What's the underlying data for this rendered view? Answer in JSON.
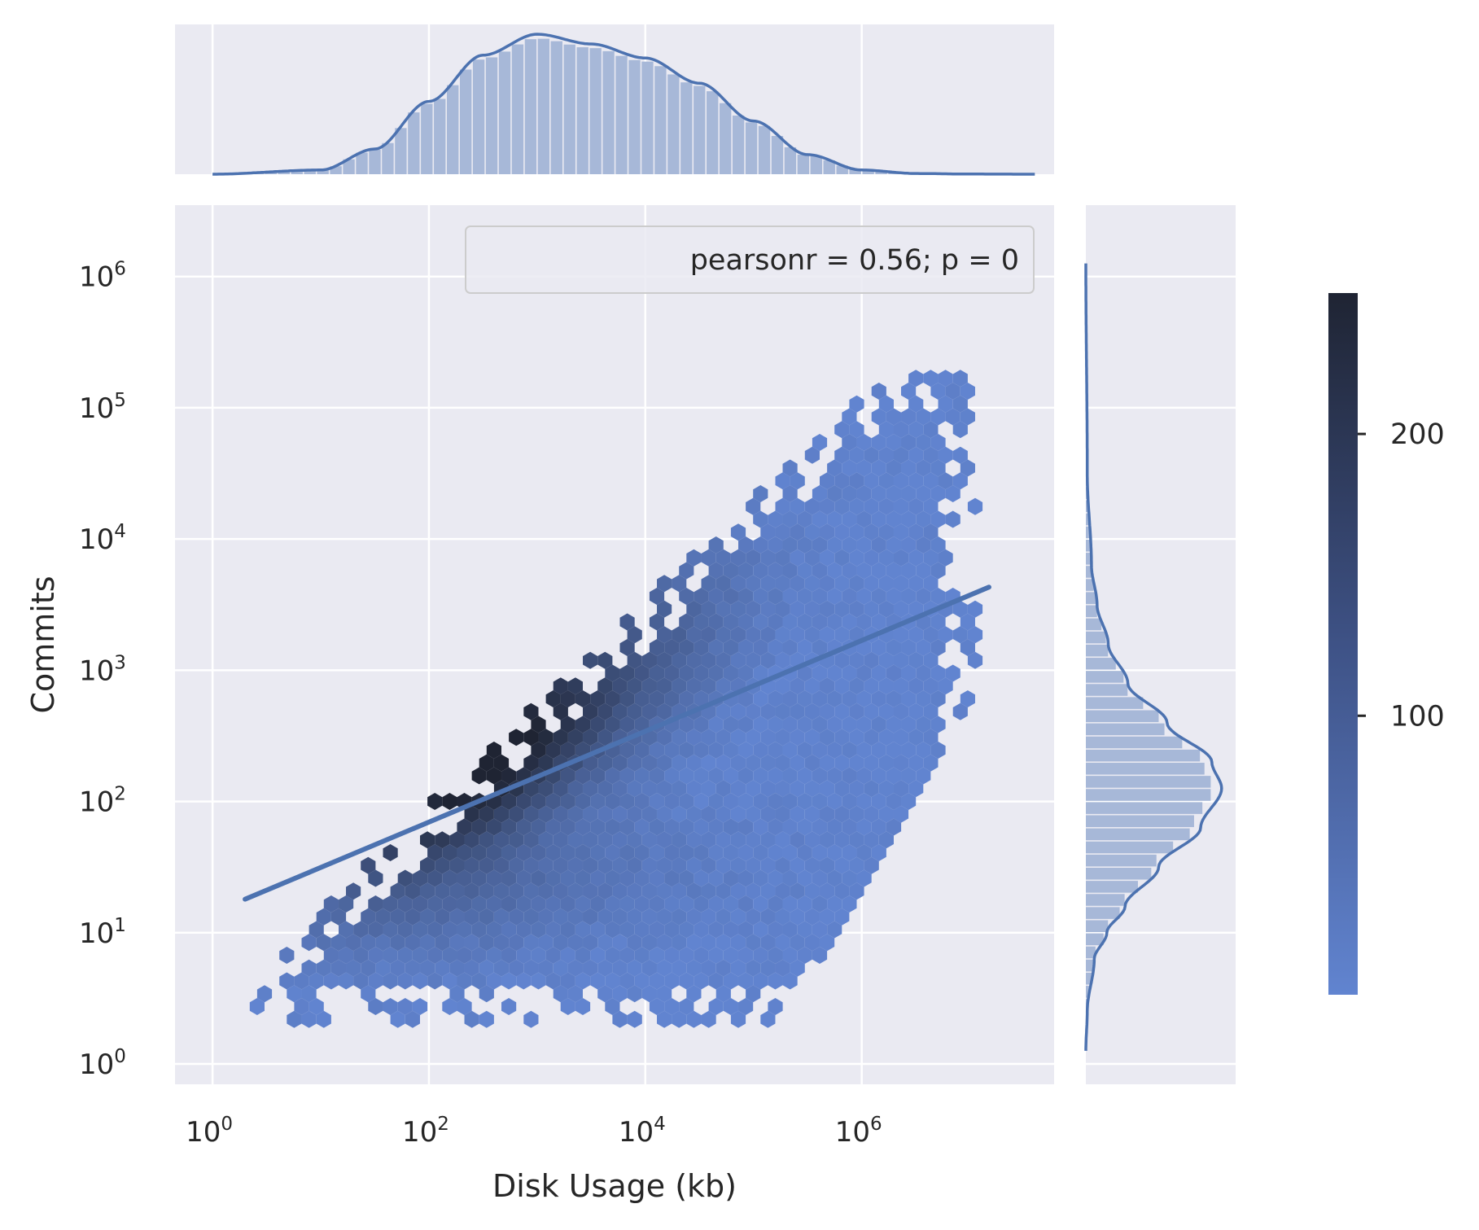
{
  "chart_data": {
    "type": "hexbin",
    "xlabel": "Disk Usage (kb)",
    "ylabel": "Commits",
    "x_scale": "log",
    "y_scale": "log",
    "xlim": [
      0.45,
      60000000
    ],
    "ylim": [
      0.7,
      3500000
    ],
    "x_ticks": [
      {
        "value": 1,
        "base": "10",
        "exp": "0"
      },
      {
        "value": 100,
        "base": "10",
        "exp": "2"
      },
      {
        "value": 10000,
        "base": "10",
        "exp": "4"
      },
      {
        "value": 1000000,
        "base": "10",
        "exp": "6"
      }
    ],
    "y_ticks": [
      {
        "value": 1,
        "base": "10",
        "exp": "0"
      },
      {
        "value": 10,
        "base": "10",
        "exp": "1"
      },
      {
        "value": 100,
        "base": "10",
        "exp": "2"
      },
      {
        "value": 1000,
        "base": "10",
        "exp": "3"
      },
      {
        "value": 10000,
        "base": "10",
        "exp": "4"
      },
      {
        "value": 100000,
        "base": "10",
        "exp": "5"
      },
      {
        "value": 1000000,
        "base": "10",
        "exp": "6"
      }
    ],
    "grid": true,
    "legend": {
      "text": "pearsonr = 0.56; p = 0",
      "placement": "upper right"
    },
    "regression_line": {
      "x": [
        2,
        15000000
      ],
      "y": [
        18,
        4300
      ]
    },
    "density_peak": {
      "x": 200,
      "y": 150
    },
    "colorbar": {
      "ticks": [
        100,
        200
      ],
      "labels": [
        "100",
        "200"
      ],
      "min": 1,
      "max": 250
    },
    "marginal_x": {
      "peak_x": 1000,
      "kde_log10x": [
        0,
        1.0,
        1.5,
        2.0,
        2.5,
        3.0,
        3.5,
        4.0,
        4.5,
        5.0,
        5.5,
        6.0,
        6.5,
        7.0,
        7.6
      ],
      "kde_density": [
        0,
        0.03,
        0.18,
        0.52,
        0.85,
        1.0,
        0.93,
        0.83,
        0.65,
        0.38,
        0.14,
        0.03,
        0.005,
        0.001,
        0
      ]
    },
    "marginal_y": {
      "peak_y": 180,
      "kde_log10y": [
        0.1,
        0.4,
        0.8,
        1.0,
        1.2,
        1.5,
        1.8,
        2.1,
        2.3,
        2.6,
        2.9,
        3.2,
        3.5,
        3.8,
        4.5,
        6.1
      ],
      "kde_density": [
        0,
        0.01,
        0.06,
        0.15,
        0.28,
        0.52,
        0.82,
        0.97,
        0.9,
        0.58,
        0.3,
        0.16,
        0.08,
        0.04,
        0.01,
        0
      ]
    },
    "colors": {
      "background": "#eaeaf2",
      "grid": "#ffffff",
      "hex_low": "#6184d0",
      "hex_high": "#1f2433",
      "line": "#4c72b0",
      "hist_fill": "#a7b8d8"
    }
  }
}
